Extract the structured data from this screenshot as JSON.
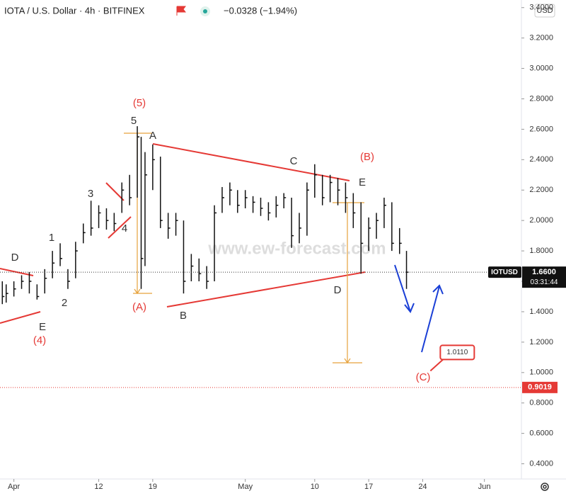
{
  "chart_data": {
    "type": "ohlc",
    "title": "IOTA / U.S. Dollar · 4h · BITFINEX",
    "change": "−0.0328 (−1.94%)",
    "currency": "USD",
    "watermark": "www.ew-forecast.com",
    "x": [
      -0.5,
      0,
      1,
      2,
      3,
      4,
      5,
      6,
      7,
      8,
      9,
      10,
      11,
      12,
      13,
      14,
      15,
      16,
      17,
      17.5,
      18,
      19,
      20,
      21,
      22,
      23,
      24,
      25,
      26,
      27,
      28,
      29,
      30,
      31,
      32,
      33,
      34,
      35,
      36,
      37,
      38,
      39,
      40,
      41,
      42,
      43,
      44,
      45,
      46,
      47,
      48,
      49,
      50,
      51,
      51.9
    ],
    "high": [
      1.6,
      1.58,
      1.6,
      1.64,
      1.66,
      1.58,
      1.68,
      1.8,
      1.85,
      1.68,
      1.86,
      1.98,
      2.13,
      2.1,
      2.08,
      2.05,
      2.25,
      2.3,
      2.62,
      2.55,
      2.45,
      2.5,
      2.42,
      2.05,
      2.05,
      2.0,
      1.78,
      1.75,
      1.7,
      2.1,
      2.22,
      2.25,
      2.2,
      2.2,
      2.16,
      2.15,
      2.12,
      2.16,
      2.18,
      2.15,
      2.05,
      2.25,
      2.37,
      2.3,
      2.3,
      2.28,
      2.25,
      2.18,
      2.12,
      2.02,
      2.05,
      2.15,
      2.12,
      1.95,
      1.8
    ],
    "low": [
      1.45,
      1.46,
      1.5,
      1.55,
      1.52,
      1.48,
      1.52,
      1.62,
      1.7,
      1.55,
      1.62,
      1.85,
      1.9,
      1.95,
      1.94,
      1.93,
      2.05,
      2.1,
      2.15,
      1.55,
      1.7,
      2.2,
      1.95,
      1.88,
      1.9,
      1.52,
      1.6,
      1.6,
      1.55,
      1.6,
      2.05,
      2.1,
      2.05,
      2.08,
      2.05,
      2.03,
      2.0,
      2.02,
      2.08,
      1.82,
      1.85,
      1.9,
      2.15,
      2.1,
      2.12,
      2.1,
      2.05,
      1.95,
      1.65,
      1.8,
      1.88,
      1.95,
      1.8,
      1.78,
      1.55
    ],
    "close": [
      1.5,
      1.52,
      1.55,
      1.6,
      1.6,
      1.5,
      1.62,
      1.72,
      1.75,
      1.6,
      1.8,
      1.92,
      1.95,
      2.05,
      2.0,
      1.98,
      2.2,
      2.15,
      2.55,
      1.75,
      2.3,
      2.4,
      2.0,
      1.95,
      2.0,
      1.6,
      1.7,
      1.65,
      1.6,
      2.05,
      2.15,
      2.2,
      2.1,
      2.15,
      2.12,
      2.08,
      2.05,
      2.1,
      2.15,
      1.9,
      1.95,
      2.2,
      2.3,
      2.15,
      2.25,
      2.2,
      2.15,
      2.05,
      1.85,
      1.95,
      2.0,
      2.1,
      1.85,
      1.85,
      1.66
    ],
    "color": "#111111",
    "xlim": [
      -0.8,
      66.8
    ],
    "xticks": [
      {
        "value": 1,
        "label": "Apr"
      },
      12,
      19,
      {
        "value": 31,
        "label": "May"
      },
      {
        "value": 40,
        "label": "10"
      },
      {
        "value": 47,
        "label": "17"
      },
      {
        "value": 54,
        "label": "24"
      },
      {
        "value": 62,
        "label": "Jun"
      }
    ],
    "ylim": [
      0.3,
      3.45
    ],
    "yticks": [
      {
        "value": 0.4,
        "label": "0.4000"
      },
      {
        "value": 0.6,
        "label": "0.6000"
      },
      {
        "value": 0.8,
        "label": "0.8000"
      },
      {
        "value": 1.0,
        "label": "1.0000"
      },
      {
        "value": 1.2,
        "label": "1.2000"
      },
      {
        "value": 1.4,
        "label": "1.4000"
      },
      {
        "value": 1.6,
        "label": "1.6000"
      },
      {
        "value": 1.8,
        "label": "1.8000"
      },
      {
        "value": 2.0,
        "label": "2.0000"
      },
      {
        "value": 2.2,
        "label": "2.2000"
      },
      {
        "value": 2.4,
        "label": "2.4000"
      },
      {
        "value": 2.6,
        "label": "2.6000"
      },
      {
        "value": 2.8,
        "label": "2.8000"
      },
      {
        "value": 3.0,
        "label": "3.0000"
      },
      {
        "value": 3.2,
        "label": "3.2000"
      },
      {
        "value": 3.4,
        "label": "3.4000"
      }
    ],
    "last_price": {
      "symbol": "IOTUSD",
      "value": 1.66,
      "label": "1.6600",
      "countdown": "03:31:44"
    },
    "level": {
      "value": 0.9019,
      "label": "0.9019",
      "color": "#e53935"
    },
    "target": {
      "value": 1.011,
      "label": "1.0110",
      "x": 55
    },
    "annotations": [
      "(5)",
      "5",
      "A",
      "C",
      "(B)",
      "E",
      "D",
      "1",
      "3",
      "4",
      "2",
      "E",
      "(4)",
      "(A)",
      "B",
      "D",
      "(C)"
    ]
  }
}
